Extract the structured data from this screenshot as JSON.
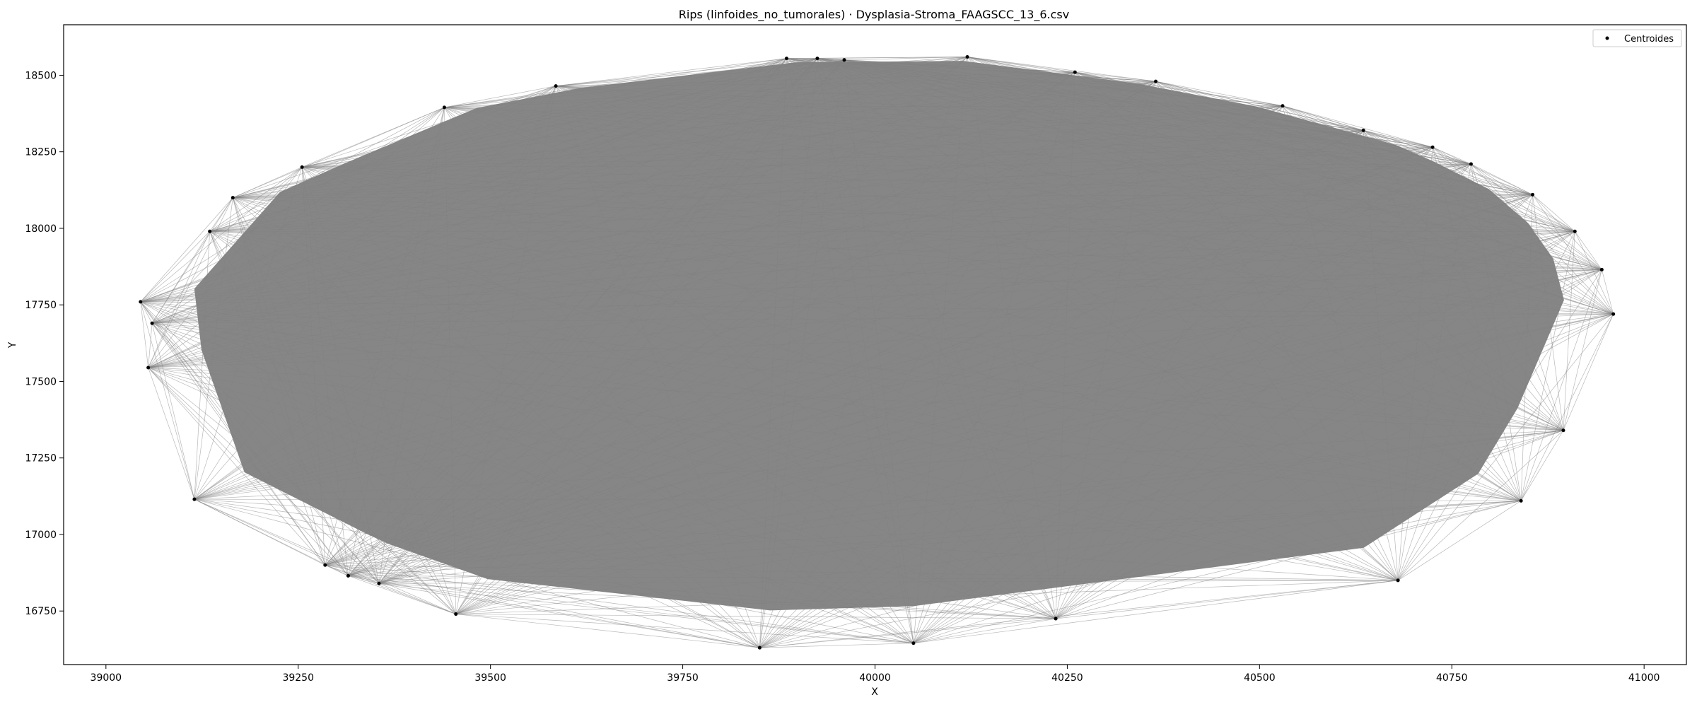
{
  "chart_data": {
    "type": "scatter",
    "title": "Rips (linfoides_no_tumorales) · Dysplasia-Stroma_FAAGSCC_13_6.csv",
    "xlabel": "X",
    "ylabel": "Y",
    "xlim": [
      38945,
      41055
    ],
    "ylim": [
      16575,
      18665
    ],
    "x_ticks": [
      39000,
      39250,
      39500,
      39750,
      40000,
      40250,
      40500,
      40750,
      41000
    ],
    "y_ticks": [
      16750,
      17000,
      17250,
      17500,
      17750,
      18000,
      18250,
      18500
    ],
    "grid": false,
    "legend": {
      "position": "top-right",
      "entries": [
        "Centroides"
      ]
    },
    "colors": {
      "edges": "#808080",
      "points": "#000000"
    },
    "series": [
      {
        "name": "Centroides",
        "points": [
          [
            39045,
            17760
          ],
          [
            39055,
            17545
          ],
          [
            39060,
            17690
          ],
          [
            39115,
            17115
          ],
          [
            39135,
            17990
          ],
          [
            39165,
            18100
          ],
          [
            39255,
            18200
          ],
          [
            39285,
            16900
          ],
          [
            39315,
            16865
          ],
          [
            39355,
            16840
          ],
          [
            39440,
            18395
          ],
          [
            39455,
            16740
          ],
          [
            39585,
            18465
          ],
          [
            39850,
            16630
          ],
          [
            39885,
            18555
          ],
          [
            39925,
            18555
          ],
          [
            39960,
            18550
          ],
          [
            40050,
            16645
          ],
          [
            40120,
            18560
          ],
          [
            40235,
            16725
          ],
          [
            40260,
            18510
          ],
          [
            40365,
            18480
          ],
          [
            40530,
            18400
          ],
          [
            40635,
            18320
          ],
          [
            40680,
            16850
          ],
          [
            40725,
            18265
          ],
          [
            40775,
            18210
          ],
          [
            40840,
            17110
          ],
          [
            40855,
            18110
          ],
          [
            40895,
            17340
          ],
          [
            40910,
            17990
          ],
          [
            40945,
            17865
          ],
          [
            40960,
            17720
          ]
        ]
      }
    ]
  }
}
